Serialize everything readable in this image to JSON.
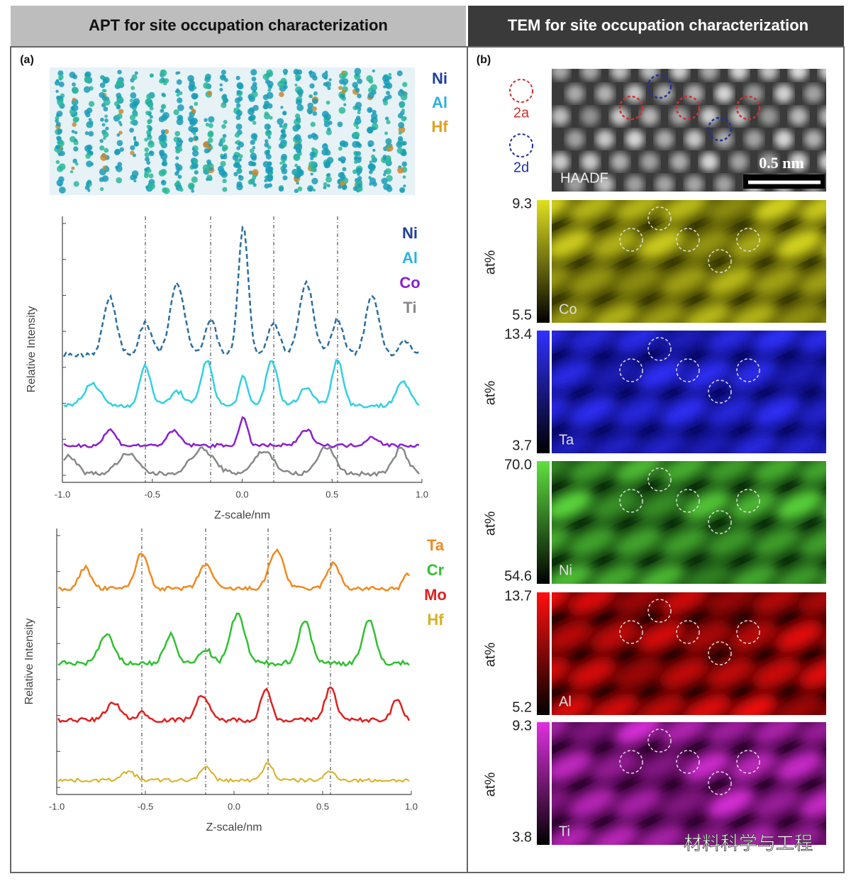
{
  "header": {
    "left": "APT for site occupation characterization",
    "right": "TEM for site occupation characterization"
  },
  "panel_a": {
    "label": "(a)",
    "atom_map_legend": [
      "Ni",
      "Al",
      "Hf"
    ],
    "plot_top": {
      "y_label": "Relative Intensity",
      "x_label": "Z-scale/nm",
      "x_ticks": [
        "-1.0",
        "-0.5",
        "0.0",
        "0.5",
        "1.0"
      ],
      "legend": [
        "Ni",
        "Al",
        "Co",
        "Ti"
      ]
    },
    "plot_bottom": {
      "y_label": "Relative Intensity",
      "x_label": "Z-scale/nm",
      "x_ticks": [
        "-1.0",
        "-0.5",
        "0.0",
        "0.5",
        "1.0"
      ],
      "legend": [
        "Ta",
        "Cr",
        "Mo",
        "Hf"
      ]
    }
  },
  "panel_b": {
    "label": "(b)",
    "haadf": {
      "legend": [
        "2a",
        "2d"
      ],
      "label": "HAADF",
      "scale_bar": "0.5 nm"
    },
    "maps": [
      {
        "element": "Co",
        "unit": "at%",
        "max": "9.3",
        "min": "5.5"
      },
      {
        "element": "Ta",
        "unit": "at%",
        "max": "13.4",
        "min": "3.7"
      },
      {
        "element": "Ni",
        "unit": "at%",
        "max": "70.0",
        "min": "54.6"
      },
      {
        "element": "Al",
        "unit": "at%",
        "max": "13.7",
        "min": "5.2"
      },
      {
        "element": "Ti",
        "unit": "at%",
        "max": "9.3",
        "min": "3.8"
      }
    ]
  },
  "watermark": "材料科学与工程"
}
